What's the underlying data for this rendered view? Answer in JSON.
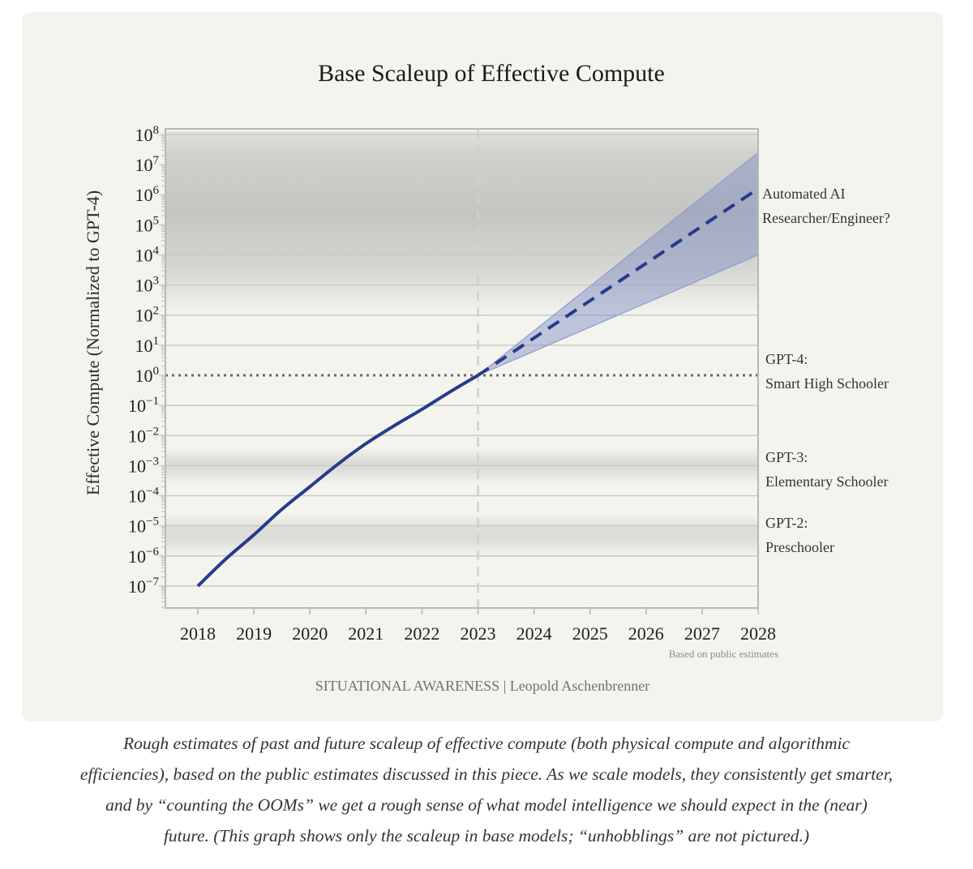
{
  "chart_data": {
    "type": "line",
    "title": "Base Scaleup of Effective Compute",
    "xlabel": "",
    "ylabel": "Effective Compute (Normalized to GPT-4)",
    "yscale": "log10",
    "xlim": [
      2017.5,
      2028
    ],
    "ylim_exp": [
      -7.6,
      8.1
    ],
    "x_ticks": [
      "2018",
      "2019",
      "2020",
      "2021",
      "2022",
      "2023",
      "2024",
      "2025",
      "2026",
      "2027",
      "2028"
    ],
    "y_ticks": [
      {
        "base": "10",
        "exp": "8"
      },
      {
        "base": "10",
        "exp": "7"
      },
      {
        "base": "10",
        "exp": "6"
      },
      {
        "base": "10",
        "exp": "5"
      },
      {
        "base": "10",
        "exp": "4"
      },
      {
        "base": "10",
        "exp": "3"
      },
      {
        "base": "10",
        "exp": "2"
      },
      {
        "base": "10",
        "exp": "1"
      },
      {
        "base": "10",
        "exp": "0"
      },
      {
        "base": "10",
        "exp": "−1"
      },
      {
        "base": "10",
        "exp": "−2"
      },
      {
        "base": "10",
        "exp": "−3"
      },
      {
        "base": "10",
        "exp": "−4"
      },
      {
        "base": "10",
        "exp": "−5"
      },
      {
        "base": "10",
        "exp": "−6"
      },
      {
        "base": "10",
        "exp": "−7"
      }
    ],
    "grid": true,
    "series": [
      {
        "name": "historical",
        "style": "solid",
        "color": "#273a8c",
        "x": [
          2018,
          2018.5,
          2019,
          2019.5,
          2020,
          2020.5,
          2021,
          2021.5,
          2022,
          2022.5,
          2023
        ],
        "log10_y": [
          -7.0,
          -6.1,
          -5.3,
          -4.45,
          -3.7,
          -2.95,
          -2.27,
          -1.68,
          -1.13,
          -0.55,
          0.0
        ]
      },
      {
        "name": "projection-median",
        "style": "dashed",
        "color": "#273a8c",
        "x": [
          2023,
          2028
        ],
        "log10_y": [
          0.0,
          6.2
        ]
      }
    ],
    "uncertainty_band": {
      "color": "#7d8cc4",
      "x": [
        2023,
        2028
      ],
      "log10_upper": [
        0.0,
        7.4
      ],
      "log10_lower": [
        0.0,
        4.0
      ]
    },
    "reference_lines": [
      {
        "type": "horizontal",
        "log10_y": 0,
        "style": "dotted",
        "color": "#666666"
      },
      {
        "type": "vertical",
        "x": 2023,
        "style": "dashed",
        "color": "#d0d0cc"
      }
    ],
    "shaded_regions": [
      {
        "name": "automated-ai-researcher-zone",
        "log10_from": 2,
        "log10_to": 8.1
      },
      {
        "name": "gpt3-zone",
        "log10_from": -3.6,
        "log10_to": -2.4
      },
      {
        "name": "gpt2-zone",
        "log10_from": -6,
        "log10_to": -4.6
      }
    ],
    "annotations": [
      {
        "id": "automated",
        "lines": [
          "Automated AI",
          "Researcher/Engineer?"
        ],
        "log10_y": 6.2
      },
      {
        "id": "gpt4",
        "lines": [
          "GPT-4:",
          "Smart High Schooler"
        ],
        "log10_y": 0
      },
      {
        "id": "gpt3",
        "lines": [
          "GPT-3:",
          "Elementary Schooler"
        ],
        "log10_y": -3.25
      },
      {
        "id": "gpt2",
        "lines": [
          "GPT-2:",
          "Preschooler"
        ],
        "log10_y": -5.3
      }
    ],
    "source_note": "Based on public estimates"
  },
  "footer": {
    "credit": "SITUATIONAL AWARENESS | Leopold Aschenbrenner"
  },
  "caption": {
    "lines": [
      "Rough estimates of past and future scaleup of effective compute (both physical compute and algorithmic",
      "efficiencies), based on the public estimates discussed in this piece. As we scale models, they consistently get smarter,",
      "and by “counting the OOMs” we get a rough sense of what model intelligence we should expect in the (near)",
      "future. (This graph shows only the scaleup in base models; “unhobblings” are not pictured.)"
    ]
  }
}
